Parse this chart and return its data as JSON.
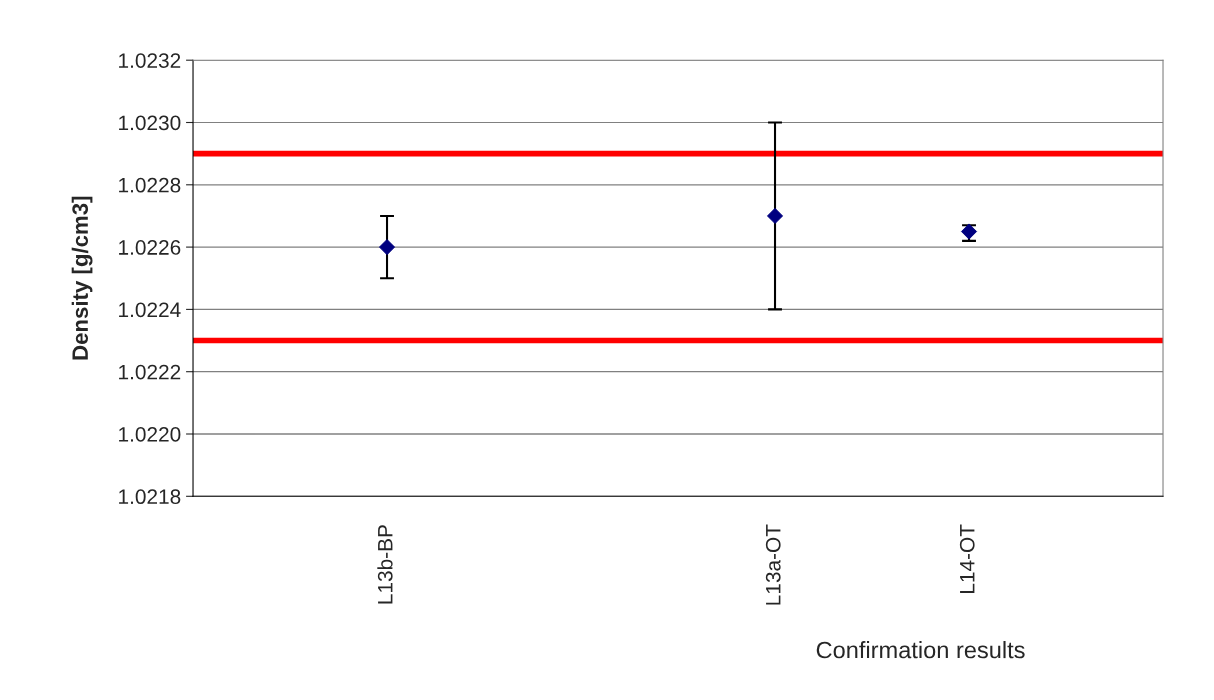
{
  "chart_data": {
    "type": "scatter",
    "xlabel": "Confirmation results",
    "ylabel": "Density [g/cm3]",
    "categories": [
      "L13b-BP",
      null,
      "L13a-OT",
      "L14-OT"
    ],
    "series": [
      {
        "color": "#000080",
        "values": [
          1.0226,
          null,
          1.0227,
          1.02265
        ],
        "errors": [
          [
            1.0225,
            1.0227
          ],
          null,
          [
            1.0224,
            1.023
          ],
          [
            1.02262,
            1.02267
          ]
        ]
      }
    ],
    "marker": "diamond",
    "ylim": [
      1.0218,
      1.0232
    ],
    "yticks": [
      1.0218,
      {
        "value": 1.022,
        "label": "1.0220"
      },
      1.0222,
      1.0224,
      1.0226,
      1.0228,
      {
        "value": 1.023,
        "label": "1.0230"
      },
      1.0232
    ],
    "grid": "y",
    "ref_lines": [
      {
        "axis": "y",
        "value": 1.0229,
        "color": "#ff0000"
      },
      {
        "axis": "y",
        "value": 1.0223,
        "color": "#ff0000"
      }
    ]
  }
}
